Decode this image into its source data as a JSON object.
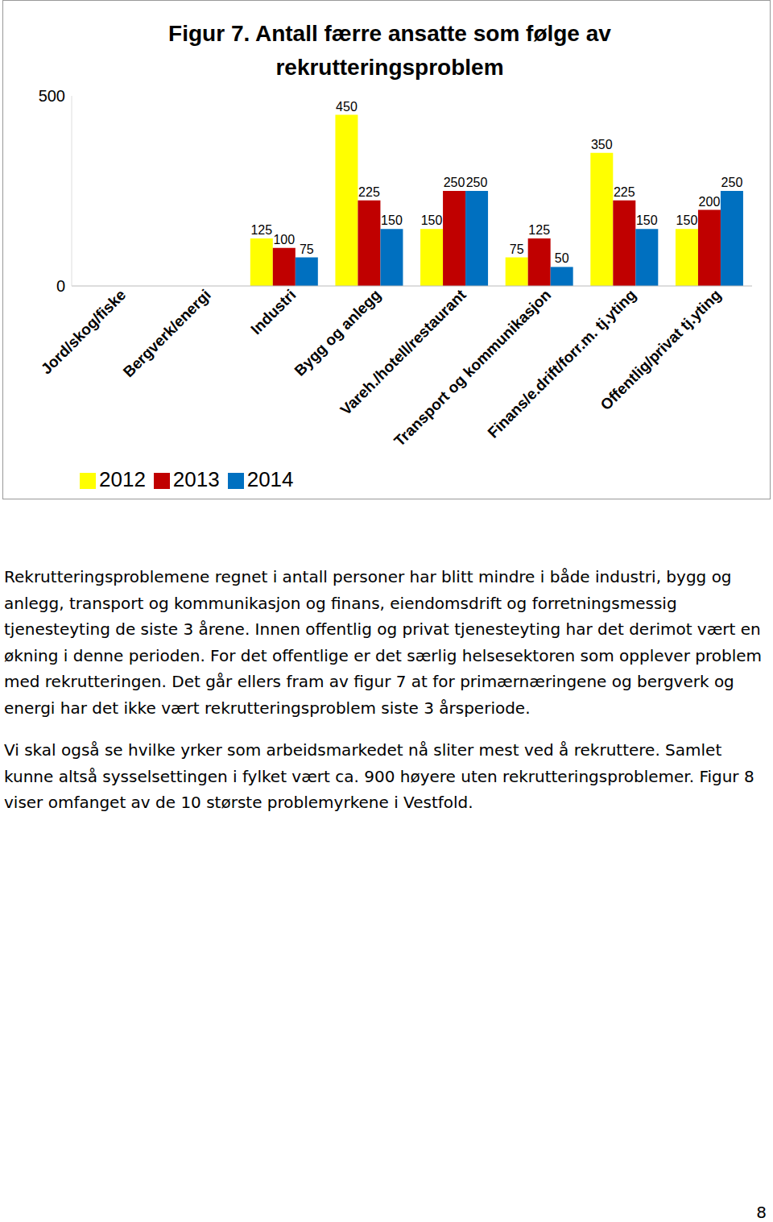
{
  "chart_data": {
    "type": "bar",
    "title": "Figur 7. Antall færre ansatte som følge av rekrutteringsproblem",
    "categories": [
      "Jord/skog/fiske",
      "Bergverk/energi",
      "Industri",
      "Bygg og anlegg",
      "Vareh./hotell/restaurant",
      "Transport og kommunikasjon",
      "Finans/e.drift/forr.m. tj.yting",
      "Offentlig/privat tj.yting"
    ],
    "series": [
      {
        "name": "2012",
        "color": "#FFFF00",
        "values": [
          0,
          0,
          125,
          450,
          150,
          75,
          350,
          150
        ]
      },
      {
        "name": "2013",
        "color": "#C00000",
        "values": [
          0,
          0,
          100,
          225,
          250,
          125,
          225,
          200
        ]
      },
      {
        "name": "2014",
        "color": "#0070C0",
        "values": [
          0,
          0,
          75,
          150,
          250,
          50,
          150,
          250
        ]
      }
    ],
    "ylim": [
      0,
      500
    ],
    "yticks": [
      0,
      500
    ],
    "grid": false,
    "data_labels": true,
    "legend": "bottom-left"
  },
  "paragraphs": [
    "Rekrutteringsproblemene regnet i antall personer har blitt mindre i både industri, bygg og anlegg, transport og kommunikasjon og finans, eiendomsdrift og forretningsmessig tjenesteyting de siste 3 årene. Innen offentlig og privat tjenesteyting har det derimot vært en økning i denne perioden. For det offentlige er det særlig helsesektoren som opplever problem med rekrutteringen. Det går ellers fram av figur 7 at for primærnæringene og bergverk og energi har det ikke vært rekrutteringsproblem siste 3 årsperiode.",
    "Vi skal også se hvilke yrker som arbeidsmarkedet nå sliter mest ved å rekruttere. Samlet kunne altså sysselsettingen i fylket vært ca. 900 høyere uten rekrutteringsproblemer. Figur 8 viser omfanget av de 10 største problemyrkene i Vestfold."
  ],
  "page_number": "8"
}
